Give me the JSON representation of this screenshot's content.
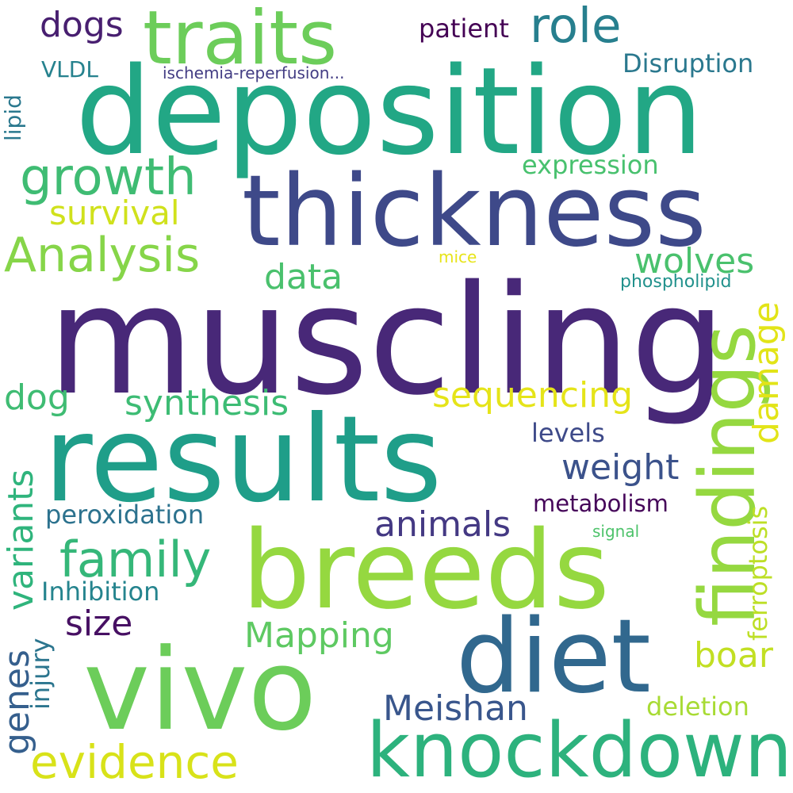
{
  "words": [
    {
      "id": "muscling",
      "text": "muscling",
      "color": "#482878"
    },
    {
      "id": "deposition",
      "text": "deposition",
      "color": "#22a785"
    },
    {
      "id": "thickness",
      "text": "thickness",
      "color": "#3e4989"
    },
    {
      "id": "results",
      "text": "results",
      "color": "#1f9e89"
    },
    {
      "id": "breeds",
      "text": "breeds",
      "color": "#95d840"
    },
    {
      "id": "vivo",
      "text": "vivo",
      "color": "#6ccd5a"
    },
    {
      "id": "diet",
      "text": "diet",
      "color": "#31688e"
    },
    {
      "id": "knockdown",
      "text": "knockdown",
      "color": "#2db27d"
    },
    {
      "id": "traits",
      "text": "traits",
      "color": "#6ccd5a"
    },
    {
      "id": "role",
      "text": "role",
      "color": "#95d840"
    },
    {
      "id": "findings",
      "text": "findings",
      "color": "#277f8e"
    },
    {
      "id": "growth",
      "text": "growth",
      "color": "#3fbc73"
    },
    {
      "id": "analysis",
      "text": "Analysis",
      "color": "#86d549"
    },
    {
      "id": "family",
      "text": "family",
      "color": "#35b779"
    },
    {
      "id": "evidence",
      "text": "evidence",
      "color": "#d8e219"
    },
    {
      "id": "sequencing",
      "text": "sequencing",
      "color": "#e5e419"
    },
    {
      "id": "synthesis",
      "text": "synthesis",
      "color": "#3dbc74"
    },
    {
      "id": "weight",
      "text": "weight",
      "color": "#3b528b"
    },
    {
      "id": "animals",
      "text": "animals",
      "color": "#443983"
    },
    {
      "id": "meishan",
      "text": "Meishan",
      "color": "#39568c"
    },
    {
      "id": "mapping",
      "text": "Mapping",
      "color": "#5ec962"
    },
    {
      "id": "survival",
      "text": "survival",
      "color": "#d0e11c"
    },
    {
      "id": "dogs",
      "text": "dogs",
      "color": "#481f70"
    },
    {
      "id": "dog",
      "text": "dog",
      "color": "#3fbc73"
    },
    {
      "id": "wolves",
      "text": "wolves",
      "color": "#4ac16d"
    },
    {
      "id": "data",
      "text": "data",
      "color": "#4ac16d"
    },
    {
      "id": "size",
      "text": "size",
      "color": "#471063"
    },
    {
      "id": "boar",
      "text": "boar",
      "color": "#c2df23"
    },
    {
      "id": "variants",
      "text": "variants",
      "color": "#2fb47c"
    },
    {
      "id": "genes",
      "text": "genes",
      "color": "#355f8d"
    },
    {
      "id": "damage",
      "text": "damage",
      "color": "#e2e418"
    },
    {
      "id": "ferroptosis",
      "text": "ferroptosis",
      "color": "#bddf26"
    },
    {
      "id": "patient",
      "text": "patient",
      "color": "#440154"
    },
    {
      "id": "expression",
      "text": "expression",
      "color": "#48c16e"
    },
    {
      "id": "peroxidation",
      "text": "peroxidation",
      "color": "#2c728e"
    },
    {
      "id": "inhibition",
      "text": "Inhibition",
      "color": "#25848e"
    },
    {
      "id": "metabolism",
      "text": "metabolism",
      "color": "#450559"
    },
    {
      "id": "disruption",
      "text": "Disruption",
      "color": "#2a788e"
    },
    {
      "id": "levels",
      "text": "levels",
      "color": "#3e4a89"
    },
    {
      "id": "deletion",
      "text": "deletion",
      "color": "#a8db34"
    },
    {
      "id": "injury",
      "text": "injury",
      "color": "#2b758e"
    },
    {
      "id": "lipid",
      "text": "lipid",
      "color": "#2a788e"
    },
    {
      "id": "vldl",
      "text": "VLDL",
      "color": "#26828e"
    },
    {
      "id": "ischemia",
      "text": "ischemia-reperfusion...",
      "color": "#433d84"
    },
    {
      "id": "phospholipid",
      "text": "phospholipid",
      "color": "#21918c"
    },
    {
      "id": "signal",
      "text": "signal",
      "color": "#4ec36b"
    },
    {
      "id": "mice",
      "text": "mice",
      "color": "#e7e419"
    }
  ]
}
